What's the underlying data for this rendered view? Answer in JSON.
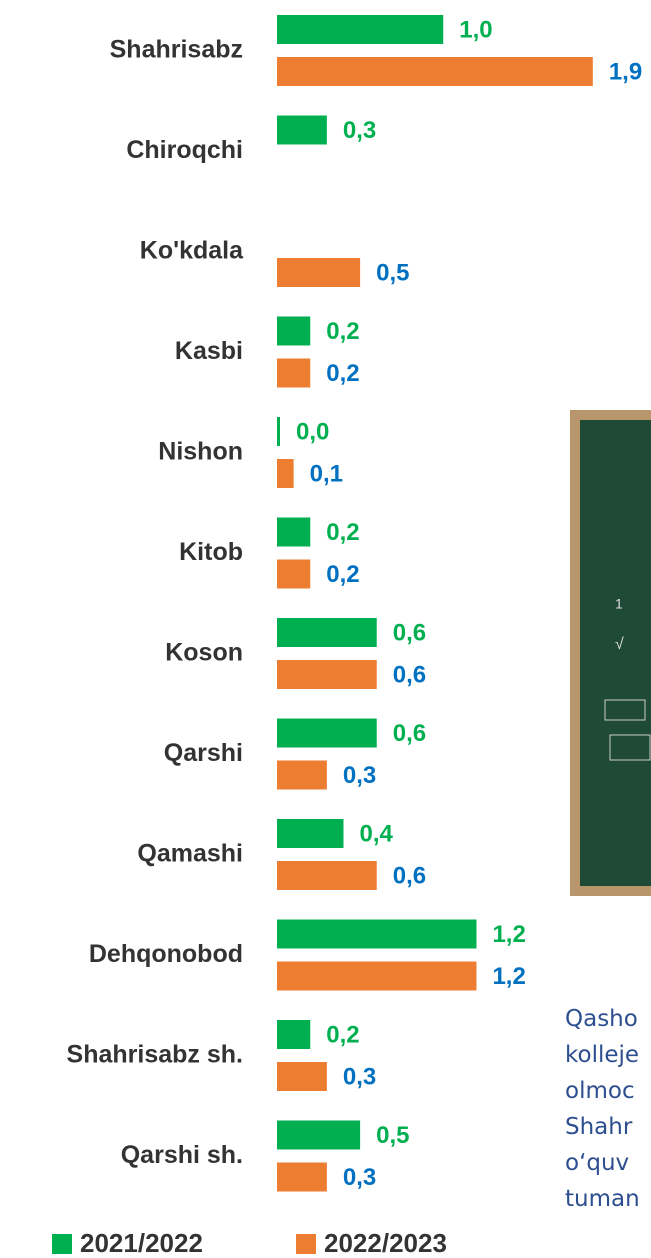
{
  "chart_data": {
    "type": "bar",
    "orientation": "horizontal",
    "categories": [
      "Shahrisabz",
      "Chiroqchi",
      "Ko'kdala",
      "Kasbi",
      "Nishon",
      "Kitob",
      "Koson",
      "Qarshi",
      "Qamashi",
      "Dehqonobod",
      "Shahrisabz sh.",
      "Qarshi sh."
    ],
    "series": [
      {
        "name": "2021/2022",
        "color": "#00b050",
        "label_color": "#00b050",
        "values": [
          1.0,
          0.3,
          null,
          0.2,
          0.0,
          0.2,
          0.6,
          0.6,
          0.4,
          1.2,
          0.2,
          0.5
        ],
        "value_labels": [
          "1,0",
          "0,3",
          null,
          "0,2",
          "0,0",
          "0,2",
          "0,6",
          "0,6",
          "0,4",
          "1,2",
          "0,2",
          "0,5"
        ]
      },
      {
        "name": "2022/2023",
        "color": "#ed7d31",
        "label_color": "#0070c0",
        "values": [
          1.9,
          null,
          0.5,
          0.2,
          0.1,
          0.2,
          0.6,
          0.3,
          0.6,
          1.2,
          0.3,
          0.3
        ],
        "value_labels": [
          "1,9",
          null,
          "0,5",
          "0,2",
          "0,1",
          "0,2",
          "0,6",
          "0,3",
          "0,6",
          "1,2",
          "0,3",
          "0,3"
        ]
      }
    ],
    "xlim": [
      0,
      2.25
    ],
    "legend": "bottom"
  },
  "side_text": [
    "Qasho",
    "kolleje",
    "olmoc",
    "Shahr",
    "o‘quv",
    "tuman"
  ]
}
